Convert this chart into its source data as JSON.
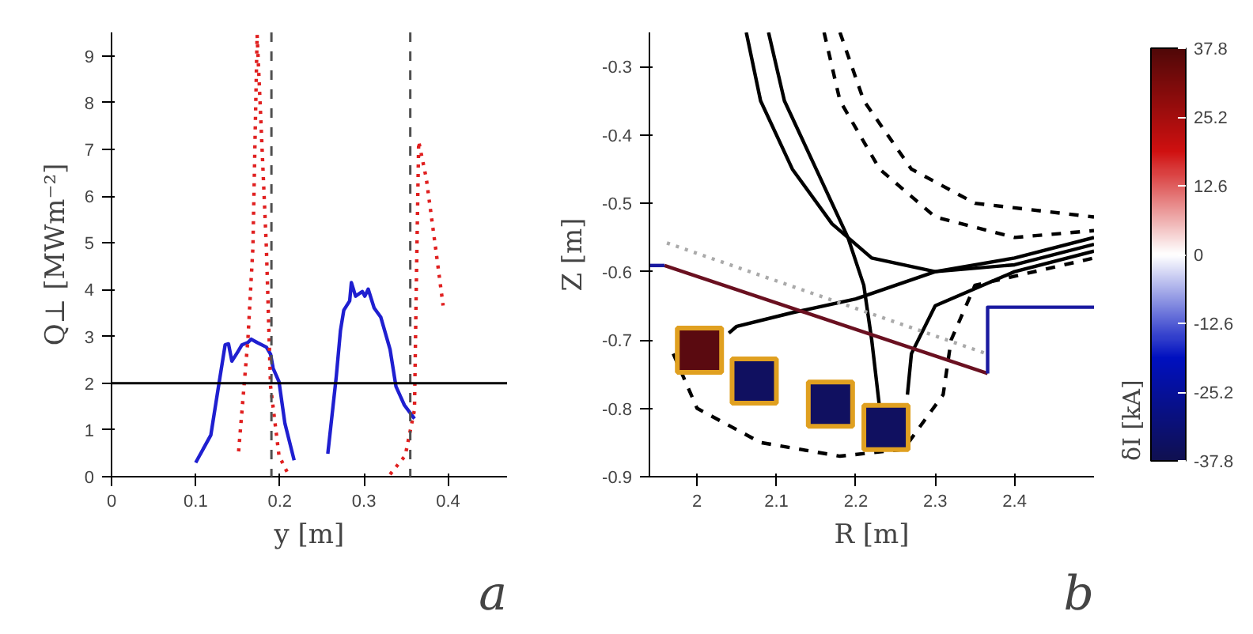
{
  "chart_data": [
    {
      "type": "line",
      "xlabel": "y [m]",
      "ylabel": "Q⊥ [MWm⁻²]",
      "xlim": [
        0,
        0.47
      ],
      "ylim": [
        0,
        9.5
      ],
      "xticks": [
        0,
        0.1,
        0.2,
        0.3,
        0.4
      ],
      "yticks": [
        0,
        1,
        2,
        3,
        4,
        5,
        6,
        7,
        8,
        9
      ],
      "series": [
        {
          "color": "#1f1fd0",
          "line_style": "solid",
          "x": [
            0.1,
            0.118,
            0.128,
            0.135,
            0.139,
            0.143,
            0.15,
            0.155,
            0.162,
            0.166,
            0.173,
            0.184,
            0.189,
            0.192,
            0.199,
            0.206,
            0.217,
            0.237,
            0.257,
            0.267,
            0.272,
            0.276,
            0.283,
            0.285,
            0.29,
            0.298,
            0.301,
            0.305,
            0.312,
            0.32,
            0.331,
            0.338,
            0.348,
            0.36
          ],
          "values": [
            0.3,
            0.89,
            2.03,
            2.82,
            2.84,
            2.47,
            2.67,
            2.82,
            2.87,
            2.94,
            2.87,
            2.77,
            2.62,
            2.32,
            2.03,
            1.14,
            0.35,
            null,
            0.49,
            2.13,
            3.12,
            3.56,
            3.76,
            4.15,
            3.86,
            3.96,
            3.86,
            4.01,
            3.61,
            3.41,
            2.72,
            1.93,
            1.53,
            1.24
          ]
        },
        {
          "color": "#e02020",
          "line_style": "dotted",
          "x": [
            0.151,
            0.162,
            0.168,
            0.173,
            0.184,
            0.189,
            0.199,
            0.21,
            0.27,
            0.331,
            0.349,
            0.36,
            0.362,
            0.365,
            0.374,
            0.385,
            0.394
          ],
          "values": [
            0.54,
            2.92,
            4.9,
            9.45,
            4.9,
            1.93,
            0.45,
            0.05,
            null,
            0.05,
            0.45,
            1.43,
            3.9,
            7.17,
            6.38,
            4.9,
            3.66
          ]
        }
      ],
      "ref_lines": [
        {
          "axis": "x",
          "value": 0.19,
          "color": "#505050",
          "line_style": "dashed"
        },
        {
          "axis": "x",
          "value": 0.355,
          "color": "#505050",
          "line_style": "dashed"
        },
        {
          "axis": "y",
          "value": 2,
          "color": "#000000",
          "line_style": "solid"
        }
      ],
      "annotations": [
        "a"
      ]
    },
    {
      "type": "line",
      "xlabel": "R [m]",
      "ylabel": "Z [m]",
      "xlim": [
        1.94,
        2.5
      ],
      "ylim": [
        -0.9,
        -0.25
      ],
      "xticks": [
        2,
        2.1,
        2.2,
        2.3,
        2.4
      ],
      "yticks": [
        -0.9,
        -0.8,
        -0.7,
        -0.6,
        -0.5,
        -0.4,
        -0.3
      ],
      "clabel": "δI [kA]",
      "clim": [
        -37.8,
        37.8
      ],
      "cticks": [
        -37.8,
        -25.2,
        -12.6,
        0,
        12.6,
        25.2,
        37.8
      ],
      "series": [
        {
          "color": "#000000",
          "line_style": "solid",
          "x": [
            2.062,
            2.08,
            2.12,
            2.17,
            2.22,
            2.3,
            2.4,
            2.5
          ],
          "values": [
            -0.25,
            -0.35,
            -0.45,
            -0.53,
            -0.58,
            -0.6,
            -0.59,
            -0.56
          ]
        },
        {
          "color": "#000000",
          "line_style": "solid",
          "x": [
            2.09,
            2.11,
            2.15,
            2.19,
            2.21,
            2.22,
            2.23
          ],
          "values": [
            -0.25,
            -0.35,
            -0.45,
            -0.55,
            -0.62,
            -0.7,
            -0.8
          ]
        },
        {
          "color": "#000000",
          "line_style": "solid",
          "x": [
            2.04,
            2.05,
            2.12,
            2.2,
            2.3,
            2.4,
            2.5
          ],
          "values": [
            -0.69,
            -0.68,
            -0.66,
            -0.64,
            -0.6,
            -0.58,
            -0.55
          ]
        },
        {
          "color": "#000000",
          "line_style": "solid",
          "x": [
            2.265,
            2.27,
            2.3,
            2.4,
            2.5
          ],
          "values": [
            -0.78,
            -0.72,
            -0.65,
            -0.6,
            -0.57
          ]
        },
        {
          "color": "#000000",
          "line_style": "dashed",
          "x": [
            2.16,
            2.18,
            2.23,
            2.3,
            2.4,
            2.5
          ],
          "values": [
            -0.25,
            -0.35,
            -0.45,
            -0.52,
            -0.55,
            -0.54
          ]
        },
        {
          "color": "#000000",
          "line_style": "dashed",
          "x": [
            2.18,
            2.21,
            2.27,
            2.35,
            2.5
          ],
          "values": [
            -0.25,
            -0.35,
            -0.45,
            -0.5,
            -0.52
          ]
        },
        {
          "color": "#000000",
          "line_style": "dashed",
          "x": [
            1.97,
            2.0,
            2.08,
            2.18,
            2.26,
            2.31,
            2.32,
            2.35,
            2.5
          ],
          "values": [
            -0.72,
            -0.8,
            -0.85,
            -0.87,
            -0.86,
            -0.78,
            -0.7,
            -0.62,
            -0.58
          ]
        },
        {
          "color": "#aaaaaa",
          "line_style": "dotted",
          "x": [
            1.962,
            2.362
          ],
          "values": [
            -0.558,
            -0.719
          ]
        },
        {
          "color": "#6a1020",
          "line_style": "solid",
          "x": [
            1.959,
            2.366
          ],
          "values": [
            -0.591,
            -0.749
          ]
        },
        {
          "color": "#1a1aa0",
          "line_style": "solid",
          "x": [
            1.941,
            1.959
          ],
          "values": [
            -0.591,
            -0.591
          ]
        },
        {
          "color": "#1a1aa0",
          "line_style": "solid",
          "x": [
            2.366,
            2.366,
            2.5
          ],
          "values": [
            -0.749,
            -0.652,
            -0.652
          ]
        },
        {
          "type": "scatter",
          "marker": "square",
          "x": [
            2.003,
            2.072,
            2.168,
            2.238
          ],
          "values": [
            -0.715,
            -0.76,
            -0.794,
            -0.828
          ],
          "colors": [
            "#5a0a10",
            "#101060",
            "#101060",
            "#101060"
          ]
        }
      ],
      "annotations": [
        "b"
      ]
    }
  ]
}
